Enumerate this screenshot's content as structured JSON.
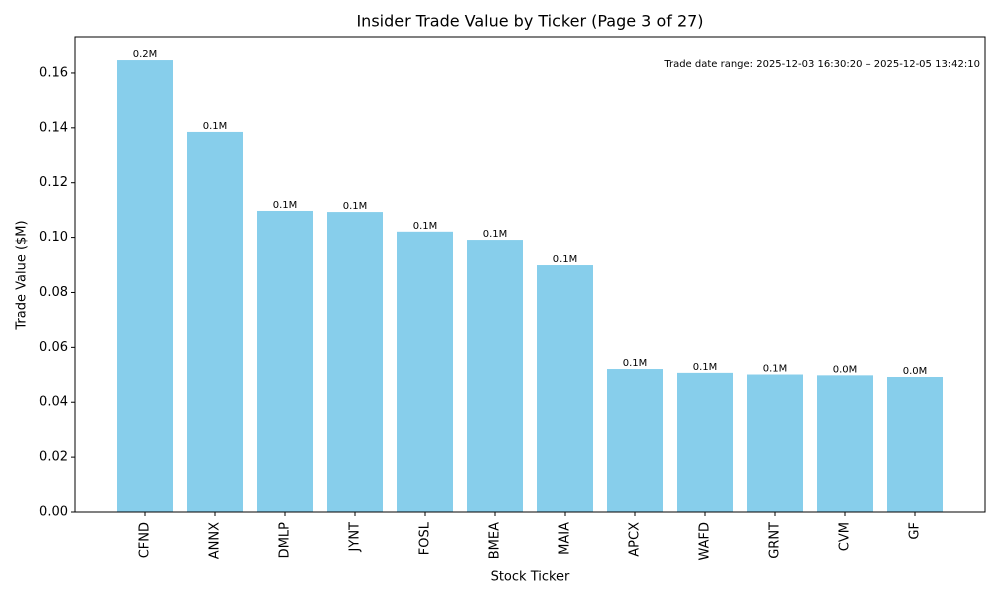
{
  "chart_data": {
    "type": "bar",
    "title": "Insider Trade Value by Ticker (Page 3 of 27)",
    "xlabel": "Stock Ticker",
    "ylabel": "Trade Value ($M)",
    "annotation": "Trade date range: 2025-12-03 16:30:20 – 2025-12-05 13:42:10",
    "categories": [
      "CFND",
      "ANNX",
      "DMLP",
      "JYNT",
      "FOSL",
      "BMEA",
      "MAIA",
      "APCX",
      "WAFD",
      "GRNT",
      "CVM",
      "GF"
    ],
    "values": [
      0.1647,
      0.1385,
      0.1097,
      0.1093,
      0.1021,
      0.0991,
      0.09,
      0.0521,
      0.0507,
      0.0501,
      0.0498,
      0.0492
    ],
    "value_labels": [
      "0.2M",
      "0.1M",
      "0.1M",
      "0.1M",
      "0.1M",
      "0.1M",
      "0.1M",
      "0.1M",
      "0.1M",
      "0.1M",
      "0.0M",
      "0.0M"
    ],
    "color": "#87ceeb",
    "ylim": [
      0,
      0.1731
    ],
    "yticks": [
      {
        "value": 0,
        "label": "0.00"
      },
      0.02,
      0.04,
      0.06,
      0.08,
      {
        "value": 0.1,
        "label": "0.10"
      },
      0.12,
      0.14,
      0.16
    ],
    "grid": false
  }
}
